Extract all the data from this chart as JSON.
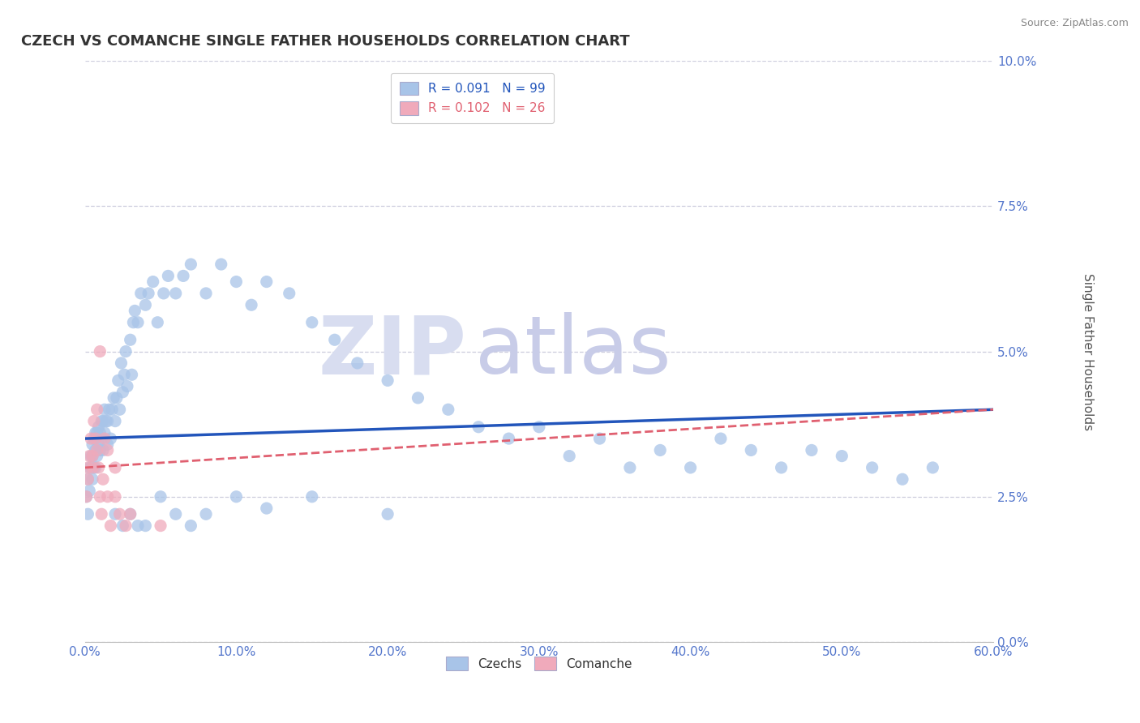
{
  "title": "CZECH VS COMANCHE SINGLE FATHER HOUSEHOLDS CORRELATION CHART",
  "source": "Source: ZipAtlas.com",
  "xlim": [
    0.0,
    0.6
  ],
  "ylim": [
    0.0,
    0.1
  ],
  "ylabel": "Single Father Households",
  "legend1_r": "R = 0.091",
  "legend1_n": "N = 99",
  "legend2_r": "R = 0.102",
  "legend2_n": "N = 26",
  "czech_color": "#a8c4e8",
  "comanche_color": "#f0aabb",
  "czech_line_color": "#2255bb",
  "comanche_line_color": "#e06070",
  "background_color": "#ffffff",
  "grid_color": "#ccccdd",
  "czechs_label": "Czechs",
  "comanche_label": "Comanche",
  "tick_color": "#5577cc",
  "ylabel_color": "#555555",
  "title_color": "#333333",
  "source_color": "#888888",
  "watermark_zip_color": "#d8ddf0",
  "watermark_atlas_color": "#c8cce8",
  "ytick_vals": [
    0.0,
    0.025,
    0.05,
    0.075,
    0.1
  ],
  "ytick_labels": [
    "0.0%",
    "2.5%",
    "5.0%",
    "7.5%",
    "10.0%"
  ],
  "xtick_vals": [
    0.0,
    0.1,
    0.2,
    0.3,
    0.4,
    0.5,
    0.6
  ],
  "xtick_labels": [
    "0.0%",
    "10.0%",
    "20.0%",
    "30.0%",
    "40.0%",
    "50.0%",
    "60.0%"
  ],
  "czech_x": [
    0.001,
    0.002,
    0.002,
    0.003,
    0.003,
    0.004,
    0.004,
    0.005,
    0.005,
    0.005,
    0.006,
    0.006,
    0.007,
    0.007,
    0.007,
    0.008,
    0.008,
    0.009,
    0.009,
    0.01,
    0.01,
    0.011,
    0.011,
    0.012,
    0.012,
    0.013,
    0.013,
    0.014,
    0.015,
    0.015,
    0.016,
    0.017,
    0.018,
    0.019,
    0.02,
    0.021,
    0.022,
    0.023,
    0.024,
    0.025,
    0.026,
    0.027,
    0.028,
    0.03,
    0.031,
    0.032,
    0.033,
    0.035,
    0.037,
    0.04,
    0.042,
    0.045,
    0.048,
    0.052,
    0.055,
    0.06,
    0.065,
    0.07,
    0.08,
    0.09,
    0.1,
    0.11,
    0.12,
    0.135,
    0.15,
    0.165,
    0.18,
    0.2,
    0.22,
    0.24,
    0.26,
    0.28,
    0.3,
    0.32,
    0.34,
    0.36,
    0.38,
    0.4,
    0.42,
    0.44,
    0.46,
    0.48,
    0.5,
    0.52,
    0.54,
    0.56,
    0.02,
    0.025,
    0.03,
    0.035,
    0.04,
    0.05,
    0.06,
    0.07,
    0.08,
    0.1,
    0.12,
    0.15,
    0.2
  ],
  "czech_y": [
    0.025,
    0.022,
    0.028,
    0.03,
    0.026,
    0.03,
    0.032,
    0.028,
    0.032,
    0.034,
    0.03,
    0.035,
    0.03,
    0.033,
    0.036,
    0.032,
    0.036,
    0.034,
    0.037,
    0.033,
    0.036,
    0.035,
    0.038,
    0.033,
    0.038,
    0.036,
    0.04,
    0.038,
    0.034,
    0.038,
    0.04,
    0.035,
    0.04,
    0.042,
    0.038,
    0.042,
    0.045,
    0.04,
    0.048,
    0.043,
    0.046,
    0.05,
    0.044,
    0.052,
    0.046,
    0.055,
    0.057,
    0.055,
    0.06,
    0.058,
    0.06,
    0.062,
    0.055,
    0.06,
    0.063,
    0.06,
    0.063,
    0.065,
    0.06,
    0.065,
    0.062,
    0.058,
    0.062,
    0.06,
    0.055,
    0.052,
    0.048,
    0.045,
    0.042,
    0.04,
    0.037,
    0.035,
    0.037,
    0.032,
    0.035,
    0.03,
    0.033,
    0.03,
    0.035,
    0.033,
    0.03,
    0.033,
    0.032,
    0.03,
    0.028,
    0.03,
    0.022,
    0.02,
    0.022,
    0.02,
    0.02,
    0.025,
    0.022,
    0.02,
    0.022,
    0.025,
    0.023,
    0.025,
    0.022
  ],
  "comanche_x": [
    0.001,
    0.002,
    0.002,
    0.003,
    0.004,
    0.005,
    0.005,
    0.006,
    0.007,
    0.008,
    0.009,
    0.01,
    0.011,
    0.012,
    0.013,
    0.015,
    0.017,
    0.02,
    0.023,
    0.027,
    0.01,
    0.008,
    0.015,
    0.02,
    0.03,
    0.05
  ],
  "comanche_y": [
    0.025,
    0.028,
    0.03,
    0.032,
    0.035,
    0.032,
    0.03,
    0.038,
    0.035,
    0.033,
    0.03,
    0.025,
    0.022,
    0.028,
    0.035,
    0.025,
    0.02,
    0.025,
    0.022,
    0.02,
    0.05,
    0.04,
    0.033,
    0.03,
    0.022,
    0.02
  ],
  "czech_line_x0": 0.0,
  "czech_line_x1": 0.6,
  "czech_line_y0": 0.035,
  "czech_line_y1": 0.04,
  "comanche_line_x0": 0.0,
  "comanche_line_x1": 0.6,
  "comanche_line_y0": 0.03,
  "comanche_line_y1": 0.04
}
